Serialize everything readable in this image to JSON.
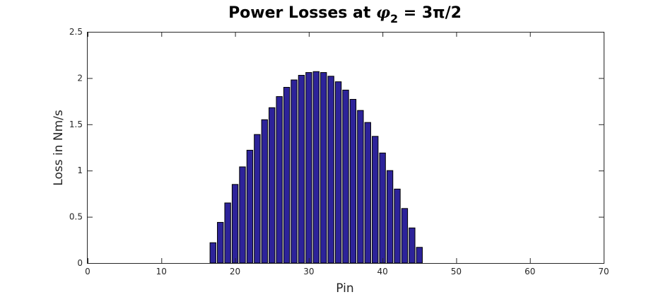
{
  "chart_data": {
    "type": "bar",
    "title_parts": {
      "prefix": "Power Losses at ",
      "symbol": "φ",
      "subscript": "2",
      "suffix": " = 3π/2"
    },
    "xlabel": "Pin",
    "ylabel": "Loss in Nm/s",
    "xlim": [
      0,
      70
    ],
    "ylim": [
      0,
      2.5
    ],
    "xticks": [
      0,
      10,
      20,
      30,
      40,
      50,
      60,
      70
    ],
    "yticks": [
      0,
      0.5,
      1,
      1.5,
      2,
      2.5
    ],
    "ytick_labels": [
      "0",
      "0.5",
      "1",
      "1.5",
      "2",
      "2.5"
    ],
    "grid": false,
    "bar_color": "#2d239a",
    "x": [
      17,
      18,
      19,
      20,
      21,
      22,
      23,
      24,
      25,
      26,
      27,
      28,
      29,
      30,
      31,
      32,
      33,
      34,
      35,
      36,
      37,
      38,
      39,
      40,
      41,
      42,
      43,
      44,
      45
    ],
    "values": [
      0.22,
      0.44,
      0.65,
      0.85,
      1.04,
      1.22,
      1.39,
      1.55,
      1.68,
      1.8,
      1.9,
      1.98,
      2.03,
      2.06,
      2.07,
      2.06,
      2.02,
      1.96,
      1.87,
      1.77,
      1.65,
      1.52,
      1.37,
      1.19,
      1.0,
      0.8,
      0.59,
      0.38,
      0.17
    ]
  }
}
